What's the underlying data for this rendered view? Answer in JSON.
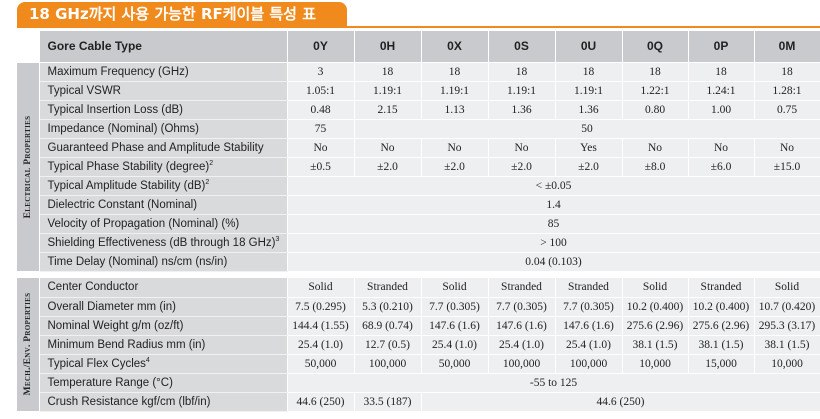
{
  "title": "18 GHz까지 사용 가능한 RF케이블 특성 표",
  "header": {
    "label": "Gore Cable Type",
    "types": [
      "0Y",
      "0H",
      "0X",
      "0S",
      "0U",
      "0Q",
      "0P",
      "0M"
    ]
  },
  "sections": {
    "electrical": "Electrical Properties",
    "mech": "Mech./Env. Properties"
  },
  "rows": {
    "max_freq": {
      "label": "Maximum Frequency (GHz)",
      "values": [
        "3",
        "18",
        "18",
        "18",
        "18",
        "18",
        "18",
        "18"
      ]
    },
    "vswr": {
      "label": "Typical VSWR",
      "values": [
        "1.05:1",
        "1.19:1",
        "1.19:1",
        "1.19:1",
        "1.19:1",
        "1.22:1",
        "1.24:1",
        "1.28:1"
      ]
    },
    "insertion_loss": {
      "label": "Typical Insertion Loss (dB)",
      "values": [
        "0.48",
        "2.15",
        "1.13",
        "1.36",
        "1.36",
        "0.80",
        "1.00",
        "0.75"
      ]
    },
    "impedance": {
      "label": "Impedance (Nominal) (Ohms)",
      "value_0y": "75",
      "value_rest": "50"
    },
    "guaranteed": {
      "label": "Guaranteed Phase and Amplitude Stability",
      "values": [
        "No",
        "No",
        "No",
        "No",
        "Yes",
        "No",
        "No",
        "No"
      ]
    },
    "phase_stability": {
      "label": "Typical Phase Stability (degree)",
      "sup": "2",
      "values": [
        "±0.5",
        "±2.0",
        "±2.0",
        "±2.0",
        "±2.0",
        "±8.0",
        "±6.0",
        "±15.0"
      ]
    },
    "amplitude_stability": {
      "label": "Typical Amplitude Stability (dB)",
      "sup": "2",
      "value": "< ±0.05"
    },
    "dielectric": {
      "label": "Dielectric Constant (Nominal)",
      "value": "1.4"
    },
    "velocity": {
      "label": "Velocity of Propagation (Nominal) (%)",
      "value": "85"
    },
    "shielding": {
      "label": "Shielding Effectiveness (dB through 18 GHz)",
      "sup": "3",
      "value": "> 100"
    },
    "time_delay": {
      "label": "Time Delay (Nominal) ns/cm (ns/in)",
      "value": "0.04 (0.103)"
    },
    "center_conductor": {
      "label": "Center Conductor",
      "values": [
        "Solid",
        "Stranded",
        "Solid",
        "Stranded",
        "Stranded",
        "Solid",
        "Stranded",
        "Solid"
      ]
    },
    "diameter": {
      "label": "Overall Diameter mm (in)",
      "values": [
        "7.5 (0.295)",
        "5.3 (0.210)",
        "7.7 (0.305)",
        "7.7 (0.305)",
        "7.7 (0.305)",
        "10.2 (0.400)",
        "10.2 (0.400)",
        "10.7 (0.420)"
      ]
    },
    "weight": {
      "label": "Nominal Weight g/m (oz/ft)",
      "values": [
        "144.4 (1.55)",
        "68.9 (0.74)",
        "147.6 (1.6)",
        "147.6 (1.6)",
        "147.6 (1.6)",
        "275.6 (2.96)",
        "275.6 (2.96)",
        "295.3 (3.17)"
      ]
    },
    "bend_radius": {
      "label": "Minimum Bend Radius mm (in)",
      "values": [
        "25.4 (1.0)",
        "12.7 (0.5)",
        "25.4 (1.0)",
        "25.4 (1.0)",
        "25.4 (1.0)",
        "38.1 (1.5)",
        "38.1 (1.5)",
        "38.1 (1.5)"
      ]
    },
    "flex_cycles": {
      "label": "Typical Flex Cycles",
      "sup": "4",
      "values": [
        "50,000",
        "100,000",
        "50,000",
        "100,000",
        "100,000",
        "10,000",
        "15,000",
        "10,000"
      ]
    },
    "temperature": {
      "label": "Temperature Range (°C)",
      "value": "-55 to 125"
    },
    "crush": {
      "label": "Crush Resistance kgf/cm (lbf/in)",
      "value_0y": "44.6 (250)",
      "value_0h": "33.5 (187)",
      "value_rest": "44.6 (250)"
    }
  }
}
